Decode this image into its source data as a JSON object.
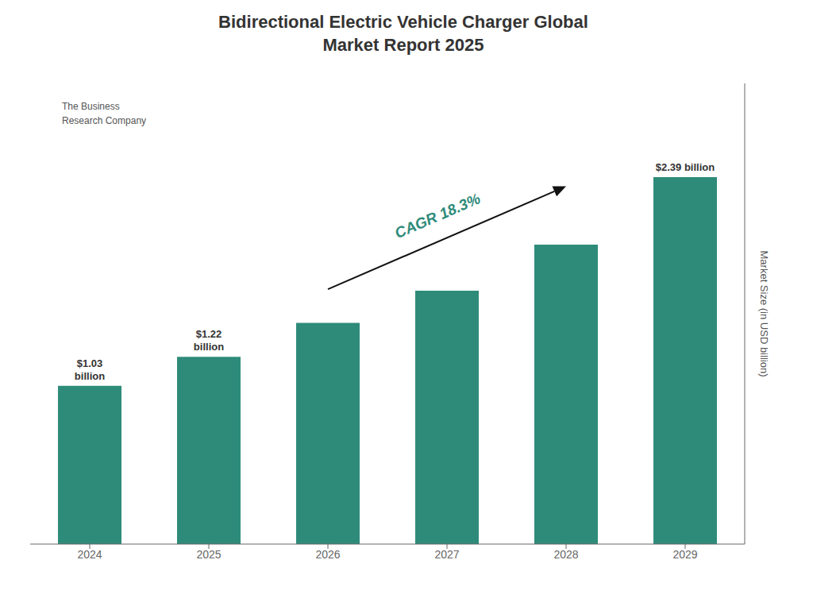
{
  "chart_data": {
    "type": "bar",
    "title": "Bidirectional Electric Vehicle Charger Global\nMarket Report 2025",
    "categories": [
      "2024",
      "2025",
      "2026",
      "2027",
      "2028",
      "2029"
    ],
    "values": [
      1.03,
      1.22,
      1.44,
      1.65,
      1.95,
      2.39
    ],
    "value_labels": [
      "$1.03\nbillion",
      "$1.22\nbillion",
      null,
      null,
      null,
      "$2.39 billion"
    ],
    "color": "#2e8b7a",
    "ylabel": "Market Size (in USD billion)",
    "ylim": [
      0,
      3.0
    ],
    "yticks": [],
    "tick_labels": "x",
    "grid": false,
    "annotations": [
      {
        "text": "CAGR 18.3%",
        "color": "#2e8b7a"
      },
      {
        "text": "The Business\nResearch Company"
      }
    ]
  }
}
